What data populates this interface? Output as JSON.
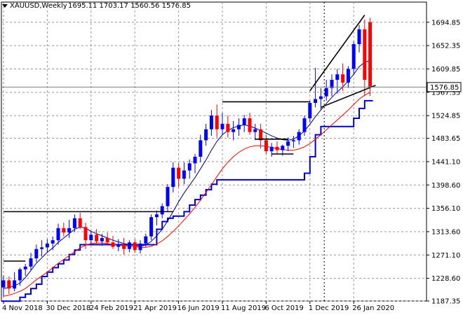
{
  "header": {
    "symbol": "XAUUSD,Weekly",
    "ohlc": "1695.11 1703.17 1560.56 1576.85"
  },
  "price_label": "1576.85",
  "colors": {
    "bull": "#0000ff",
    "bear": "#ff0000",
    "grid": "#9a9a9a",
    "axis": "#000000",
    "ma_slow": "#ff0000",
    "ma_fast": "#000080",
    "channel": "#0000cd",
    "trendline": "#000000",
    "price_box": "#ffffff"
  },
  "chart_data": {
    "type": "candlestick",
    "timeframe": "Weekly",
    "ylim": [
      1187.35,
      1715.0
    ],
    "y_ticks": [
      "1694.85",
      "1652.35",
      "1609.85",
      "1567.35",
      "1524.85",
      "1483.65",
      "1441.10",
      "1398.60",
      "1356.10",
      "1313.60",
      "1271.10",
      "1228.60",
      "1187.35"
    ],
    "x_ticks": [
      {
        "i": 0,
        "label": "4 Nov 2018"
      },
      {
        "i": 8,
        "label": "30 Dec 2018"
      },
      {
        "i": 16,
        "label": "24 Feb 2019"
      },
      {
        "i": 24,
        "label": "21 Apr 2019"
      },
      {
        "i": 32,
        "label": "16 Jun 2019"
      },
      {
        "i": 40,
        "label": "11 Aug 2019"
      },
      {
        "i": 48,
        "label": "6 Oct 2019"
      },
      {
        "i": 56,
        "label": "1 Dec 2019"
      },
      {
        "i": 64,
        "label": "26 Jan 2020"
      }
    ],
    "period_separator_i": 59,
    "candles": [
      [
        1212,
        1234,
        1196,
        1225
      ],
      [
        1225,
        1232,
        1200,
        1210
      ],
      [
        1210,
        1240,
        1205,
        1225
      ],
      [
        1225,
        1248,
        1215,
        1245
      ],
      [
        1245,
        1255,
        1233,
        1250
      ],
      [
        1250,
        1275,
        1242,
        1265
      ],
      [
        1265,
        1290,
        1258,
        1282
      ],
      [
        1282,
        1298,
        1268,
        1285
      ],
      [
        1285,
        1300,
        1275,
        1292
      ],
      [
        1292,
        1305,
        1280,
        1298
      ],
      [
        1298,
        1328,
        1290,
        1320
      ],
      [
        1320,
        1330,
        1305,
        1312
      ],
      [
        1312,
        1335,
        1302,
        1320
      ],
      [
        1320,
        1345,
        1313,
        1338
      ],
      [
        1338,
        1348,
        1318,
        1322
      ],
      [
        1322,
        1330,
        1282,
        1298
      ],
      [
        1298,
        1315,
        1292,
        1308
      ],
      [
        1308,
        1318,
        1290,
        1296
      ],
      [
        1296,
        1310,
        1288,
        1302
      ],
      [
        1302,
        1312,
        1290,
        1294
      ],
      [
        1294,
        1306,
        1282,
        1286
      ],
      [
        1286,
        1300,
        1278,
        1290
      ],
      [
        1290,
        1302,
        1272,
        1282
      ],
      [
        1282,
        1298,
        1276,
        1294
      ],
      [
        1294,
        1300,
        1275,
        1280
      ],
      [
        1280,
        1298,
        1274,
        1292
      ],
      [
        1292,
        1310,
        1286,
        1305
      ],
      [
        1305,
        1345,
        1298,
        1340
      ],
      [
        1340,
        1352,
        1325,
        1345
      ],
      [
        1345,
        1365,
        1338,
        1360
      ],
      [
        1360,
        1400,
        1350,
        1395
      ],
      [
        1395,
        1440,
        1385,
        1430
      ],
      [
        1430,
        1438,
        1395,
        1410
      ],
      [
        1410,
        1440,
        1400,
        1425
      ],
      [
        1425,
        1445,
        1410,
        1438
      ],
      [
        1438,
        1455,
        1420,
        1450
      ],
      [
        1450,
        1490,
        1440,
        1480
      ],
      [
        1480,
        1510,
        1470,
        1500
      ],
      [
        1500,
        1535,
        1488,
        1525
      ],
      [
        1525,
        1545,
        1485,
        1500
      ],
      [
        1500,
        1530,
        1490,
        1510
      ],
      [
        1510,
        1525,
        1485,
        1495
      ],
      [
        1495,
        1515,
        1480,
        1500
      ],
      [
        1500,
        1520,
        1488,
        1508
      ],
      [
        1508,
        1526,
        1495,
        1520
      ],
      [
        1520,
        1530,
        1490,
        1495
      ],
      [
        1495,
        1510,
        1480,
        1500
      ],
      [
        1500,
        1510,
        1465,
        1480
      ],
      [
        1480,
        1490,
        1455,
        1460
      ],
      [
        1460,
        1475,
        1450,
        1468
      ],
      [
        1468,
        1478,
        1455,
        1462
      ],
      [
        1462,
        1472,
        1452,
        1470
      ],
      [
        1470,
        1485,
        1460,
        1478
      ],
      [
        1478,
        1488,
        1466,
        1480
      ],
      [
        1480,
        1500,
        1472,
        1495
      ],
      [
        1495,
        1525,
        1488,
        1520
      ],
      [
        1520,
        1552,
        1512,
        1548
      ],
      [
        1548,
        1612,
        1540,
        1555
      ],
      [
        1555,
        1575,
        1535,
        1560
      ],
      [
        1560,
        1590,
        1552,
        1575
      ],
      [
        1575,
        1600,
        1560,
        1590
      ],
      [
        1590,
        1610,
        1565,
        1600
      ],
      [
        1600,
        1620,
        1570,
        1585
      ],
      [
        1585,
        1615,
        1575,
        1610
      ],
      [
        1610,
        1660,
        1600,
        1655
      ],
      [
        1655,
        1690,
        1640,
        1682
      ],
      [
        1682,
        1700,
        1560,
        1590
      ],
      [
        1695.11,
        1703.17,
        1560.56,
        1576.85
      ]
    ],
    "ma_fast": [
      1210,
      1212,
      1215,
      1220,
      1230,
      1243,
      1256,
      1266,
      1276,
      1284,
      1294,
      1302,
      1310,
      1318,
      1322,
      1320,
      1314,
      1310,
      1306,
      1302,
      1298,
      1295,
      1292,
      1290,
      1288,
      1287,
      1289,
      1296,
      1306,
      1318,
      1333,
      1350,
      1368,
      1384,
      1398,
      1412,
      1428,
      1444,
      1462,
      1478,
      1490,
      1498,
      1503,
      1506,
      1508,
      1506,
      1502,
      1498,
      1493,
      1488,
      1484,
      1481,
      1480,
      1482,
      1488,
      1497,
      1509,
      1523,
      1535,
      1547,
      1558,
      1568,
      1577,
      1588,
      1600,
      1614,
      1622,
      1625
    ],
    "ma_slow": [
      1196,
      1198,
      1201,
      1205,
      1210,
      1218,
      1226,
      1233,
      1240,
      1248,
      1256,
      1263,
      1270,
      1277,
      1284,
      1289,
      1292,
      1293,
      1293,
      1292,
      1290,
      1289,
      1288,
      1287,
      1286,
      1285,
      1285,
      1287,
      1291,
      1297,
      1305,
      1314,
      1324,
      1335,
      1346,
      1358,
      1371,
      1385,
      1399,
      1414,
      1428,
      1440,
      1450,
      1458,
      1464,
      1468,
      1470,
      1470,
      1469,
      1467,
      1465,
      1463,
      1462,
      1462,
      1464,
      1468,
      1474,
      1482,
      1490,
      1499,
      1508,
      1517,
      1526,
      1535,
      1545,
      1555,
      1562,
      1567
    ],
    "channel_low": [
      1187,
      1187,
      1187,
      1194,
      1200,
      1210,
      1218,
      1232,
      1240,
      1248,
      1255,
      1262,
      1272,
      1280,
      1290,
      1290,
      1290,
      1290,
      1290,
      1290,
      1290,
      1290,
      1290,
      1290,
      1290,
      1290,
      1290,
      1290,
      1318,
      1332,
      1338,
      1342,
      1342,
      1350,
      1362,
      1372,
      1380,
      1390,
      1400,
      1408,
      1408,
      1408,
      1408,
      1408,
      1408,
      1408,
      1408,
      1408,
      1408,
      1408,
      1408,
      1408,
      1408,
      1408,
      1408,
      1420,
      1450,
      1490,
      1505,
      1505,
      1505,
      1505,
      1505,
      1505,
      1520,
      1538,
      1552,
      1552
    ],
    "lines": [
      {
        "kind": "horizontal",
        "y": 1350,
        "i1": 0,
        "i2": 31
      },
      {
        "kind": "horizontal",
        "y": 1550,
        "i1": 40,
        "i2": 56
      },
      {
        "kind": "horizontal",
        "y": 1482,
        "i1": 46,
        "i2": 52
      },
      {
        "kind": "horizontal",
        "y": 1455,
        "i1": 49,
        "i2": 53
      },
      {
        "kind": "horizontal",
        "y": 1260,
        "i1": 0,
        "i2": 4
      },
      {
        "kind": "trend",
        "i1": 56,
        "y1": 1570,
        "i2": 66,
        "y2": 1708
      },
      {
        "kind": "trend",
        "i1": 58,
        "y1": 1540,
        "i2": 68,
        "y2": 1580
      }
    ]
  }
}
